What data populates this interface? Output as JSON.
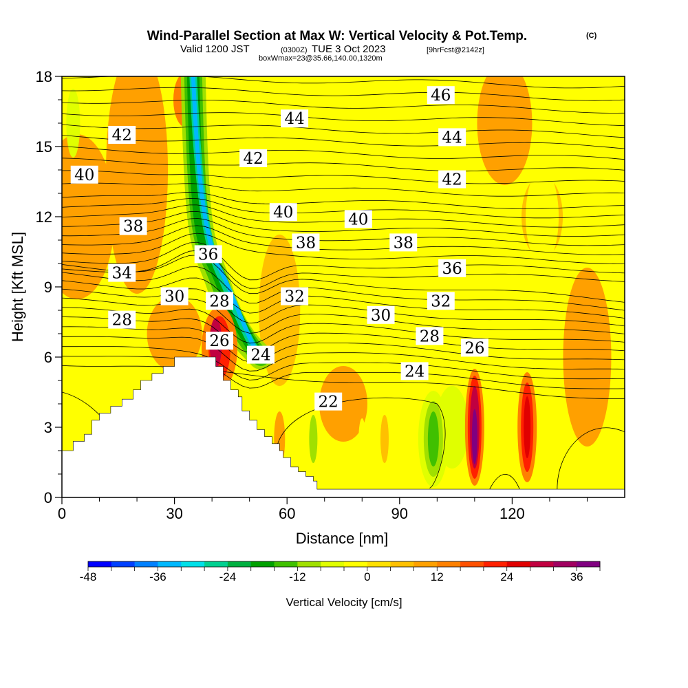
{
  "title": {
    "main": "Wind-Parallel Section at Max W: Vertical Velocity & Pot.Temp.",
    "copyright": "(C)",
    "valid_prefix": "Valid 1200 JST",
    "utc": "(0300Z)",
    "date": "TUE 3 Oct 2023",
    "forecast": "[9hrFcst@2142z]",
    "box_info": "boxWmax=23@35.66,140.00,1320m"
  },
  "chart_data": {
    "type": "heatmap",
    "xlabel": "Distance [nm]",
    "ylabel": "Height [Kft MSL]",
    "xlim": [
      0,
      150
    ],
    "ylim": [
      0,
      18
    ],
    "x_ticks": [
      0,
      30,
      60,
      90,
      120
    ],
    "y_ticks": [
      0,
      3,
      6,
      9,
      12,
      15,
      18
    ],
    "terrain_profile": [
      [
        0,
        2
      ],
      [
        3,
        2
      ],
      [
        3,
        2.4
      ],
      [
        6,
        2.4
      ],
      [
        6,
        2.7
      ],
      [
        8,
        2.7
      ],
      [
        8,
        3.3
      ],
      [
        10,
        3.3
      ],
      [
        10,
        3.6
      ],
      [
        13,
        3.6
      ],
      [
        13,
        3.9
      ],
      [
        16,
        3.9
      ],
      [
        16,
        4.2
      ],
      [
        19,
        4.2
      ],
      [
        19,
        4.6
      ],
      [
        21,
        4.6
      ],
      [
        21,
        5
      ],
      [
        24,
        5
      ],
      [
        24,
        5.3
      ],
      [
        27,
        5.3
      ],
      [
        27,
        5.6
      ],
      [
        30,
        5.6
      ],
      [
        30,
        6
      ],
      [
        41,
        6
      ],
      [
        41,
        5.6
      ],
      [
        43,
        5.6
      ],
      [
        43,
        5
      ],
      [
        45,
        5
      ],
      [
        45,
        4.6
      ],
      [
        47,
        4.6
      ],
      [
        47,
        4.3
      ],
      [
        48,
        4.3
      ],
      [
        48,
        3.7
      ],
      [
        50,
        3.7
      ],
      [
        50,
        3.3
      ],
      [
        52,
        3.3
      ],
      [
        52,
        2.9
      ],
      [
        54,
        2.9
      ],
      [
        54,
        2.6
      ],
      [
        56,
        2.6
      ],
      [
        56,
        2.3
      ],
      [
        58,
        2.3
      ],
      [
        58,
        2
      ],
      [
        59,
        2
      ],
      [
        59,
        1.7
      ],
      [
        61,
        1.7
      ],
      [
        61,
        1.3
      ],
      [
        63,
        1.3
      ],
      [
        63,
        1.1
      ],
      [
        65,
        1.1
      ],
      [
        65,
        0.9
      ],
      [
        67,
        0.9
      ],
      [
        67,
        0.7
      ],
      [
        68,
        0.7
      ],
      [
        68,
        0.35
      ],
      [
        150,
        0.35
      ]
    ],
    "colorbar": {
      "label": "Vertical Velocity [cm/s]",
      "min": -48,
      "max": 40,
      "step": 4,
      "tick_labels": [
        "-48",
        "-36",
        "-24",
        "-12",
        "0",
        "12",
        "24",
        "36"
      ],
      "colors": [
        "#0000ff",
        "#0040ff",
        "#0080ff",
        "#00b8ff",
        "#00e0e8",
        "#00d090",
        "#00b040",
        "#00a000",
        "#40c000",
        "#a0e000",
        "#e0ff00",
        "#ffff00",
        "#ffe000",
        "#ffc000",
        "#ffa000",
        "#ff8000",
        "#ff5000",
        "#ff2000",
        "#e00000",
        "#c00040",
        "#a00060",
        "#800080"
      ]
    },
    "vertical_velocity_features": [
      {
        "x": 36,
        "y_range": [
          10,
          18
        ],
        "w": -36,
        "feature": "descending plume"
      },
      {
        "x": 42,
        "y_range": [
          5,
          8
        ],
        "w": 20
      },
      {
        "x": 38,
        "y_range": [
          14,
          18
        ],
        "w": 12
      },
      {
        "x": 67,
        "y_range": [
          1,
          4
        ],
        "w": -12
      },
      {
        "x": 99,
        "y_range": [
          0.5,
          4.5
        ],
        "w": -16
      },
      {
        "x": 110,
        "y_range": [
          0.5,
          6
        ],
        "w": 36
      },
      {
        "x": 124,
        "y_range": [
          1,
          6
        ],
        "w": 24
      }
    ],
    "potential_temperature_contour_labels": [
      {
        "value": "46",
        "x": 101,
        "y": 17.2
      },
      {
        "value": "44",
        "x": 62,
        "y": 16.2
      },
      {
        "value": "44",
        "x": 104,
        "y": 15.4
      },
      {
        "value": "42",
        "x": 16,
        "y": 15.5
      },
      {
        "value": "42",
        "x": 51,
        "y": 14.5
      },
      {
        "value": "42",
        "x": 104,
        "y": 13.6
      },
      {
        "value": "40",
        "x": 6,
        "y": 13.8
      },
      {
        "value": "40",
        "x": 59,
        "y": 12.2
      },
      {
        "value": "40",
        "x": 79,
        "y": 11.9
      },
      {
        "value": "38",
        "x": 19,
        "y": 11.6
      },
      {
        "value": "38",
        "x": 65,
        "y": 10.9
      },
      {
        "value": "38",
        "x": 91,
        "y": 10.9
      },
      {
        "value": "36",
        "x": 39,
        "y": 10.4
      },
      {
        "value": "36",
        "x": 104,
        "y": 9.8
      },
      {
        "value": "34",
        "x": 16,
        "y": 9.6
      },
      {
        "value": "32",
        "x": 62,
        "y": 8.6
      },
      {
        "value": "32",
        "x": 101,
        "y": 8.4
      },
      {
        "value": "30",
        "x": 30,
        "y": 8.6
      },
      {
        "value": "30",
        "x": 85,
        "y": 7.8
      },
      {
        "value": "28",
        "x": 16,
        "y": 7.6
      },
      {
        "value": "28",
        "x": 42,
        "y": 8.4
      },
      {
        "value": "28",
        "x": 98,
        "y": 6.9
      },
      {
        "value": "26",
        "x": 42,
        "y": 6.7
      },
      {
        "value": "26",
        "x": 110,
        "y": 6.4
      },
      {
        "value": "24",
        "x": 53,
        "y": 6.1
      },
      {
        "value": "24",
        "x": 94,
        "y": 5.4
      },
      {
        "value": "22",
        "x": 71,
        "y": 4.1
      }
    ]
  }
}
